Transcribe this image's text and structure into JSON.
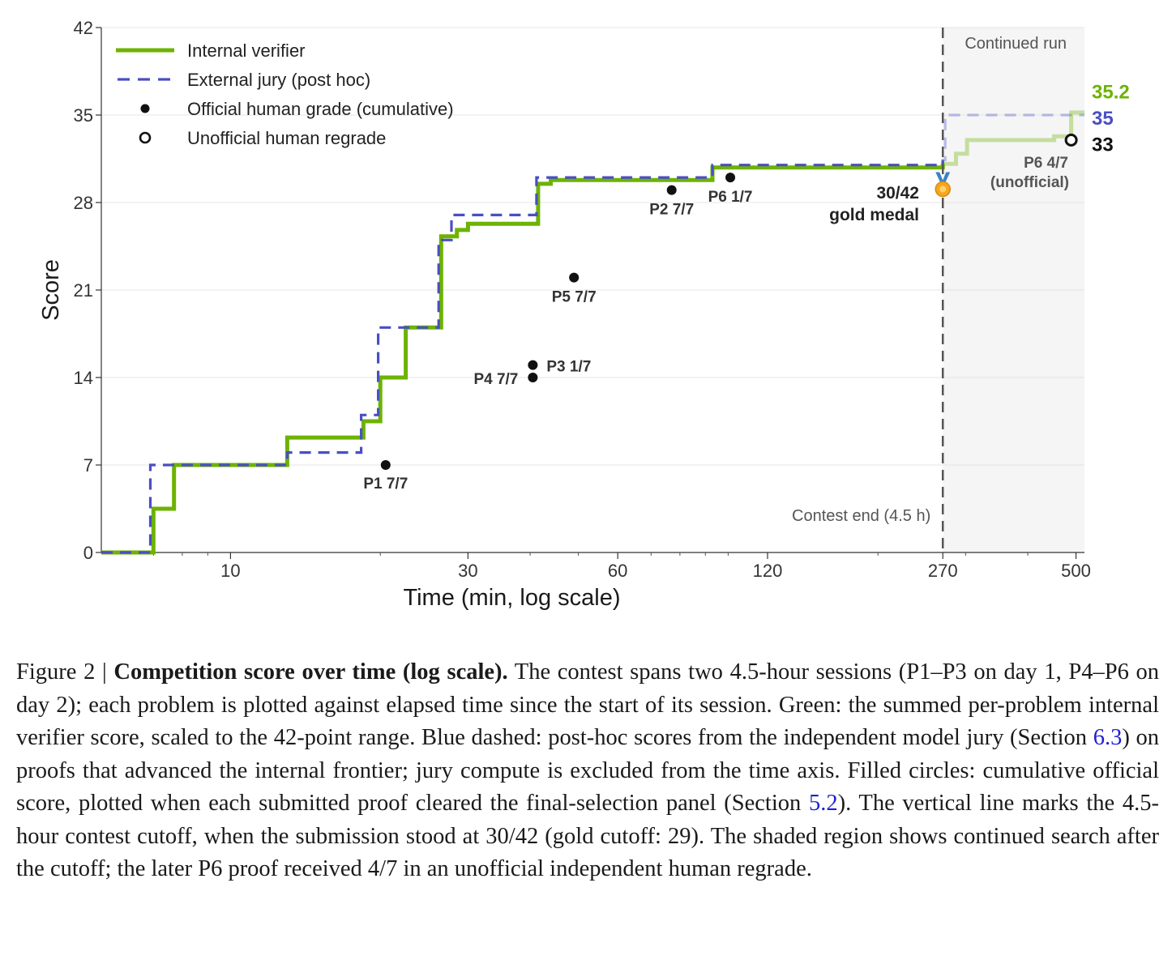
{
  "chart_data": {
    "type": "line",
    "xlabel": "Time (min, log scale)",
    "ylabel": "Score",
    "xscale": "log",
    "xlim": [
      5.5,
      520
    ],
    "ylim": [
      0,
      42
    ],
    "xticks": [
      10,
      30,
      60,
      120,
      270,
      500
    ],
    "yticks": [
      0,
      7,
      14,
      21,
      28,
      35,
      42
    ],
    "grid": "horizontal",
    "legend_position": "top-left",
    "legend": [
      {
        "label": "Internal verifier",
        "style": "solid",
        "color": "#6db300"
      },
      {
        "label": "External jury (post hoc)",
        "style": "dashed",
        "color": "#4a4fc2"
      },
      {
        "label": "Official human grade (cumulative)",
        "style": "filled-circle",
        "color": "#111111"
      },
      {
        "label": "Unofficial human regrade",
        "style": "open-circle",
        "color": "#111111"
      }
    ],
    "series": [
      {
        "name": "Internal verifier",
        "color": "#6db300",
        "step": true,
        "points": [
          [
            5.5,
            0
          ],
          [
            7,
            0
          ],
          [
            7,
            3.5
          ],
          [
            7.7,
            3.5
          ],
          [
            7.7,
            7
          ],
          [
            13,
            7
          ],
          [
            13,
            9.2
          ],
          [
            18.5,
            9.2
          ],
          [
            18.5,
            10.5
          ],
          [
            20,
            10.5
          ],
          [
            20,
            14
          ],
          [
            22.5,
            14
          ],
          [
            22.5,
            18
          ],
          [
            26.5,
            18
          ],
          [
            26.5,
            25.3
          ],
          [
            28.5,
            25.3
          ],
          [
            28.5,
            25.8
          ],
          [
            30,
            25.8
          ],
          [
            30,
            26.3
          ],
          [
            41.5,
            26.3
          ],
          [
            41.5,
            29.5
          ],
          [
            44,
            29.5
          ],
          [
            44,
            29.8
          ],
          [
            93,
            29.8
          ],
          [
            93,
            30.8
          ],
          [
            270,
            30.8
          ],
          [
            270,
            31.1
          ],
          [
            287,
            31.1
          ],
          [
            287,
            31.9
          ],
          [
            302,
            31.9
          ],
          [
            302,
            33.0
          ],
          [
            452,
            33.0
          ],
          [
            452,
            33.3
          ],
          [
            489,
            33.3
          ],
          [
            489,
            35.2
          ],
          [
            520,
            35.2
          ]
        ]
      },
      {
        "name": "External jury (post hoc)",
        "color": "#4a4fc2",
        "step": true,
        "points": [
          [
            5.5,
            0
          ],
          [
            6.9,
            0
          ],
          [
            6.9,
            7
          ],
          [
            13,
            7
          ],
          [
            13,
            8
          ],
          [
            18.3,
            8
          ],
          [
            18.3,
            11
          ],
          [
            19.8,
            11
          ],
          [
            19.8,
            18
          ],
          [
            26.2,
            18
          ],
          [
            26.2,
            25
          ],
          [
            27.8,
            25
          ],
          [
            27.8,
            27
          ],
          [
            41.2,
            27
          ],
          [
            41.2,
            30
          ],
          [
            93,
            30
          ],
          [
            93,
            31
          ],
          [
            270,
            31
          ],
          [
            270,
            31.4
          ],
          [
            273,
            31.4
          ],
          [
            273,
            35
          ],
          [
            520,
            35
          ]
        ]
      }
    ],
    "official_points": [
      {
        "x": 20.5,
        "y": 7,
        "label": "P1 7/7"
      },
      {
        "x": 40.5,
        "y": 14,
        "label": "P4 7/7"
      },
      {
        "x": 40.5,
        "y": 15,
        "label": "P3 1/7"
      },
      {
        "x": 49,
        "y": 22,
        "label": "P5 7/7"
      },
      {
        "x": 77,
        "y": 29,
        "label": "P2 7/7"
      },
      {
        "x": 101,
        "y": 30,
        "label": "P6 1/7"
      }
    ],
    "unofficial_points": [
      {
        "x": 489,
        "y": 33,
        "label": "P6 4/7",
        "sublabel": "(unofficial)"
      }
    ],
    "contest_end": {
      "x": 270,
      "label": "Contest end (4.5 h)"
    },
    "shaded_region": {
      "x": [
        270,
        520
      ],
      "label": "Continued run"
    },
    "medal": {
      "x": 270,
      "y": 29.2,
      "label": "30/42",
      "sublabel": "gold medal"
    },
    "final_labels": [
      {
        "text": "35.2",
        "color": "#6db300",
        "y": 36.9
      },
      {
        "text": "35",
        "color": "#4a4fc2",
        "y": 34.8
      },
      {
        "text": "33",
        "color": "#111111",
        "y": 32.7
      }
    ]
  },
  "caption": {
    "prefix": "Figure 2 | ",
    "title": "Competition score over time (log scale).",
    "seg1": " The contest spans two 4.5-hour sessions (P1–P3 on day 1, P4–P6 on day 2); each problem is plotted against elapsed time since the start of its session. Green: the summed per-problem internal verifier score, scaled to the 42-point range. Blue dashed: post-hoc scores from the independent model jury (Section ",
    "ref1": "6.3",
    "seg2": ") on proofs that advanced the internal frontier; jury compute is excluded from the time axis. Filled circles: cumulative official score, plotted when each submitted proof cleared the final-selection panel (Section ",
    "ref2": "5.2",
    "seg3": "). The vertical line marks the 4.5-hour contest cutoff, when the submission stood at 30/42 (gold cutoff: 29). The shaded region shows continued search after the cutoff; the later P6 proof received 4/7 in an unofficial independent human regrade."
  }
}
